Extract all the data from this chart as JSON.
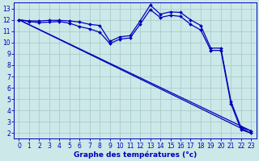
{
  "xlabel": "Graphe des températures (°c)",
  "background_color": "#cce8e8",
  "line_color": "#0000bb",
  "grid_color": "#aacccc",
  "xlim": [
    -0.5,
    23.5
  ],
  "ylim": [
    1.5,
    13.5
  ],
  "xticks": [
    0,
    1,
    2,
    3,
    4,
    5,
    6,
    7,
    8,
    9,
    10,
    11,
    12,
    13,
    14,
    15,
    16,
    17,
    18,
    19,
    20,
    21,
    22,
    23
  ],
  "yticks": [
    2,
    3,
    4,
    5,
    6,
    7,
    8,
    9,
    10,
    11,
    12,
    13
  ],
  "series": [
    {
      "x": [
        0,
        1,
        2,
        3,
        4,
        5,
        6,
        7,
        8,
        9,
        10,
        11,
        12,
        13,
        14,
        15,
        16,
        17,
        18,
        19,
        20,
        21,
        22,
        23
      ],
      "y": [
        12.0,
        11.9,
        11.9,
        11.95,
        11.95,
        11.9,
        11.8,
        11.6,
        11.5,
        10.1,
        10.5,
        10.6,
        11.9,
        13.3,
        12.5,
        12.7,
        12.65,
        12.0,
        11.5,
        9.5,
        9.5,
        4.8,
        2.5,
        2.2
      ],
      "marker": true
    },
    {
      "x": [
        0,
        1,
        2,
        3,
        4,
        5,
        6,
        7,
        8,
        9,
        10,
        11,
        12,
        13,
        14,
        15,
        16,
        17,
        18,
        19,
        20,
        21,
        22,
        23
      ],
      "y": [
        12.0,
        11.85,
        11.75,
        11.8,
        11.85,
        11.7,
        11.4,
        11.2,
        10.9,
        9.9,
        10.3,
        10.4,
        11.6,
        12.9,
        12.2,
        12.4,
        12.3,
        11.6,
        11.1,
        9.3,
        9.3,
        4.6,
        2.3,
        2.0
      ],
      "marker": true
    },
    {
      "x": [
        0,
        23
      ],
      "y": [
        12.0,
        2.2
      ],
      "marker": false
    },
    {
      "x": [
        0,
        23
      ],
      "y": [
        12.0,
        2.0
      ],
      "marker": false
    }
  ],
  "tick_fontsize": 5.5,
  "xlabel_fontsize": 6.5,
  "figsize": [
    3.2,
    2.0
  ],
  "dpi": 100
}
